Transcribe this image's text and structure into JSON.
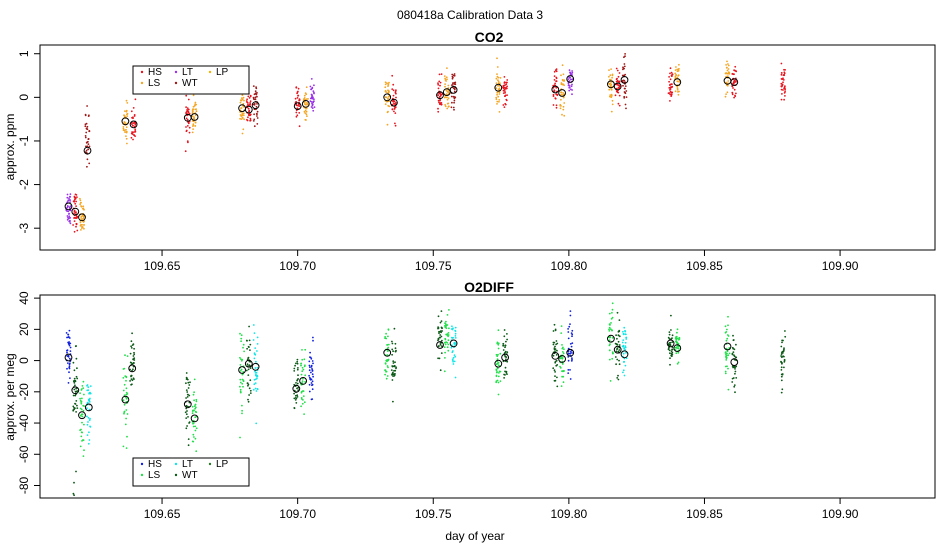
{
  "figure": {
    "title": "080418a   Calibration Data 3",
    "xlabel": "day of year"
  },
  "colors": {
    "HS": "#e8141e",
    "LS": "#f5a623",
    "LT": "#9a30e8",
    "WT": "#a01818",
    "LP": "#f2b300",
    "HS2": "#1020e0",
    "LS2": "#22e04a",
    "LT2": "#10e6e6",
    "WT2": "#0b5a17",
    "LP2": "#2a7a2a"
  },
  "chart_data": [
    {
      "type": "scatter",
      "title": "CO2",
      "ylabel": "approx. ppm",
      "xlim": [
        109.605,
        109.935
      ],
      "ylim": [
        -3.5,
        1.2
      ],
      "xticks": [
        109.65,
        109.7,
        109.75,
        109.8,
        109.85,
        109.9
      ],
      "xtick_labels": [
        "109.65",
        "109.70",
        "109.75",
        "109.80",
        "109.85",
        "109.90"
      ],
      "yticks": [
        -3,
        -2,
        -1,
        0,
        1
      ],
      "ytick_labels": [
        "-3",
        "-2",
        "-1",
        "0",
        "1"
      ],
      "legend": [
        "HS",
        "LS",
        "LT",
        "WT",
        "LP"
      ],
      "legend_position": "top-left",
      "clusters": [
        {
          "x": 109.6155,
          "y": -2.5,
          "s": "LT",
          "n": 40,
          "sd": 0.22
        },
        {
          "x": 109.618,
          "y": -2.6,
          "s": "HS",
          "n": 40,
          "sd": 0.2
        },
        {
          "x": 109.6205,
          "y": -2.75,
          "s": "LS",
          "n": 40,
          "sd": 0.2
        },
        {
          "x": 109.6225,
          "y": -0.85,
          "s": "WT",
          "n": 30,
          "sd": 0.3
        },
        {
          "x": 109.6225,
          "y": -1.2,
          "s": "WT",
          "n": 8,
          "sd": 0.25
        },
        {
          "x": 109.6365,
          "y": -0.55,
          "s": "LS",
          "n": 35,
          "sd": 0.22
        },
        {
          "x": 109.6395,
          "y": -0.62,
          "s": "HS",
          "n": 35,
          "sd": 0.2
        },
        {
          "x": 109.6595,
          "y": -0.47,
          "s": "HS",
          "n": 35,
          "sd": 0.22
        },
        {
          "x": 109.662,
          "y": -0.45,
          "s": "LS",
          "n": 35,
          "sd": 0.22
        },
        {
          "x": 109.6795,
          "y": -0.25,
          "s": "LS",
          "n": 35,
          "sd": 0.2
        },
        {
          "x": 109.682,
          "y": -0.3,
          "s": "HS",
          "n": 35,
          "sd": 0.22
        },
        {
          "x": 109.6845,
          "y": -0.18,
          "s": "WT",
          "n": 35,
          "sd": 0.2
        },
        {
          "x": 109.7,
          "y": -0.2,
          "s": "HS",
          "n": 35,
          "sd": 0.18
        },
        {
          "x": 109.703,
          "y": -0.15,
          "s": "LS",
          "n": 35,
          "sd": 0.2
        },
        {
          "x": 109.7055,
          "y": 0.0,
          "s": "LT",
          "n": 35,
          "sd": 0.2
        },
        {
          "x": 109.733,
          "y": -0.0,
          "s": "LS",
          "n": 35,
          "sd": 0.22
        },
        {
          "x": 109.7355,
          "y": -0.12,
          "s": "HS",
          "n": 35,
          "sd": 0.2
        },
        {
          "x": 109.7525,
          "y": 0.05,
          "s": "HS",
          "n": 35,
          "sd": 0.2
        },
        {
          "x": 109.755,
          "y": 0.12,
          "s": "LS",
          "n": 35,
          "sd": 0.22
        },
        {
          "x": 109.7575,
          "y": 0.17,
          "s": "WT",
          "n": 35,
          "sd": 0.22
        },
        {
          "x": 109.774,
          "y": 0.2,
          "s": "LS",
          "n": 35,
          "sd": 0.22
        },
        {
          "x": 109.7765,
          "y": 0.17,
          "s": "HS",
          "n": 35,
          "sd": 0.2
        },
        {
          "x": 109.795,
          "y": 0.18,
          "s": "HS",
          "n": 35,
          "sd": 0.2
        },
        {
          "x": 109.7975,
          "y": 0.1,
          "s": "LS",
          "n": 35,
          "sd": 0.25
        },
        {
          "x": 109.8005,
          "y": 0.42,
          "s": "LT",
          "n": 35,
          "sd": 0.2
        },
        {
          "x": 109.8155,
          "y": 0.3,
          "s": "LS",
          "n": 35,
          "sd": 0.22
        },
        {
          "x": 109.818,
          "y": 0.25,
          "s": "HS",
          "n": 35,
          "sd": 0.22
        },
        {
          "x": 109.8205,
          "y": 0.4,
          "s": "WT",
          "n": 35,
          "sd": 0.25
        },
        {
          "x": 109.8375,
          "y": 0.3,
          "s": "HS",
          "n": 35,
          "sd": 0.2
        },
        {
          "x": 109.84,
          "y": 0.35,
          "s": "LS",
          "n": 35,
          "sd": 0.22
        },
        {
          "x": 109.8585,
          "y": 0.38,
          "s": "LS",
          "n": 35,
          "sd": 0.2
        },
        {
          "x": 109.861,
          "y": 0.35,
          "s": "HS",
          "n": 35,
          "sd": 0.22
        },
        {
          "x": 109.879,
          "y": 0.35,
          "s": "HS",
          "n": 35,
          "sd": 0.2
        }
      ],
      "means": [
        {
          "x": 109.6155,
          "y": -2.5
        },
        {
          "x": 109.618,
          "y": -2.62
        },
        {
          "x": 109.6205,
          "y": -2.75
        },
        {
          "x": 109.6225,
          "y": -1.22
        },
        {
          "x": 109.6365,
          "y": -0.55
        },
        {
          "x": 109.6395,
          "y": -0.62
        },
        {
          "x": 109.6595,
          "y": -0.47
        },
        {
          "x": 109.662,
          "y": -0.45
        },
        {
          "x": 109.6795,
          "y": -0.25
        },
        {
          "x": 109.682,
          "y": -0.28
        },
        {
          "x": 109.6845,
          "y": -0.18
        },
        {
          "x": 109.7,
          "y": -0.2
        },
        {
          "x": 109.703,
          "y": -0.15
        },
        {
          "x": 109.733,
          "y": 0.0
        },
        {
          "x": 109.7355,
          "y": -0.12
        },
        {
          "x": 109.7525,
          "y": 0.05
        },
        {
          "x": 109.755,
          "y": 0.12
        },
        {
          "x": 109.7575,
          "y": 0.17
        },
        {
          "x": 109.774,
          "y": 0.22
        },
        {
          "x": 109.795,
          "y": 0.18
        },
        {
          "x": 109.7975,
          "y": 0.1
        },
        {
          "x": 109.8005,
          "y": 0.42
        },
        {
          "x": 109.8155,
          "y": 0.3
        },
        {
          "x": 109.818,
          "y": 0.25
        },
        {
          "x": 109.8205,
          "y": 0.4
        },
        {
          "x": 109.84,
          "y": 0.35
        },
        {
          "x": 109.8585,
          "y": 0.38
        },
        {
          "x": 109.861,
          "y": 0.35
        }
      ]
    },
    {
      "type": "scatter",
      "title": "O2DIFF",
      "ylabel": "approx. per meg",
      "xlim": [
        109.605,
        109.935
      ],
      "ylim": [
        -88,
        42
      ],
      "xticks": [
        109.65,
        109.7,
        109.75,
        109.8,
        109.85,
        109.9
      ],
      "xtick_labels": [
        "109.65",
        "109.70",
        "109.75",
        "109.80",
        "109.85",
        "109.90"
      ],
      "yticks": [
        -80,
        -60,
        -40,
        -20,
        0,
        20,
        40
      ],
      "ytick_labels": [
        "-80",
        "-60",
        "-40",
        "-20",
        "0",
        "20",
        "40"
      ],
      "legend": [
        "HS",
        "LS",
        "LT",
        "WT",
        "LP"
      ],
      "legend_position": "bottom-left",
      "clusters": [
        {
          "x": 109.6155,
          "y": 2,
          "s": "HS2",
          "n": 40,
          "sd": 9
        },
        {
          "x": 109.618,
          "y": -18,
          "s": "WT2",
          "n": 40,
          "sd": 12
        },
        {
          "x": 109.6205,
          "y": -35,
          "s": "LS2",
          "n": 35,
          "sd": 10
        },
        {
          "x": 109.623,
          "y": -30,
          "s": "LT2",
          "n": 35,
          "sd": 11
        },
        {
          "x": 109.618,
          "y": -75,
          "s": "WT2",
          "n": 4,
          "sd": 6
        },
        {
          "x": 109.6365,
          "y": -25,
          "s": "LS2",
          "n": 35,
          "sd": 13
        },
        {
          "x": 109.639,
          "y": -5,
          "s": "WT2",
          "n": 35,
          "sd": 10
        },
        {
          "x": 109.6595,
          "y": -28,
          "s": "WT2",
          "n": 35,
          "sd": 10
        },
        {
          "x": 109.662,
          "y": -35,
          "s": "LS2",
          "n": 35,
          "sd": 11
        },
        {
          "x": 109.6795,
          "y": -6,
          "s": "LS2",
          "n": 35,
          "sd": 13
        },
        {
          "x": 109.682,
          "y": -1,
          "s": "WT2",
          "n": 35,
          "sd": 12
        },
        {
          "x": 109.6845,
          "y": -5,
          "s": "LT2",
          "n": 35,
          "sd": 12
        },
        {
          "x": 109.6995,
          "y": -18,
          "s": "WT2",
          "n": 35,
          "sd": 10
        },
        {
          "x": 109.702,
          "y": -13,
          "s": "LS2",
          "n": 35,
          "sd": 10
        },
        {
          "x": 109.705,
          "y": -6,
          "s": "HS2",
          "n": 35,
          "sd": 8
        },
        {
          "x": 109.733,
          "y": 5,
          "s": "LS2",
          "n": 35,
          "sd": 9
        },
        {
          "x": 109.7355,
          "y": -4,
          "s": "WT2",
          "n": 35,
          "sd": 9
        },
        {
          "x": 109.7525,
          "y": 12,
          "s": "WT2",
          "n": 35,
          "sd": 9
        },
        {
          "x": 109.755,
          "y": 15,
          "s": "LS2",
          "n": 35,
          "sd": 9
        },
        {
          "x": 109.7575,
          "y": 10,
          "s": "LT2",
          "n": 35,
          "sd": 9
        },
        {
          "x": 109.774,
          "y": -3,
          "s": "LS2",
          "n": 35,
          "sd": 9
        },
        {
          "x": 109.7765,
          "y": 2,
          "s": "WT2",
          "n": 35,
          "sd": 9
        },
        {
          "x": 109.795,
          "y": 3,
          "s": "WT2",
          "n": 35,
          "sd": 11
        },
        {
          "x": 109.7975,
          "y": 1,
          "s": "LS2",
          "n": 35,
          "sd": 10
        },
        {
          "x": 109.8005,
          "y": 5,
          "s": "HS2",
          "n": 35,
          "sd": 11
        },
        {
          "x": 109.8155,
          "y": 14,
          "s": "LS2",
          "n": 35,
          "sd": 9
        },
        {
          "x": 109.818,
          "y": 7,
          "s": "WT2",
          "n": 35,
          "sd": 9
        },
        {
          "x": 109.8205,
          "y": 4,
          "s": "LT2",
          "n": 35,
          "sd": 9
        },
        {
          "x": 109.8375,
          "y": 10,
          "s": "WT2",
          "n": 35,
          "sd": 6
        },
        {
          "x": 109.84,
          "y": 9,
          "s": "LS2",
          "n": 35,
          "sd": 6
        },
        {
          "x": 109.8585,
          "y": 8,
          "s": "LS2",
          "n": 35,
          "sd": 8
        },
        {
          "x": 109.861,
          "y": -1,
          "s": "WT2",
          "n": 35,
          "sd": 8
        },
        {
          "x": 109.879,
          "y": 3,
          "s": "WT2",
          "n": 35,
          "sd": 9
        }
      ],
      "means": [
        {
          "x": 109.6155,
          "y": 2
        },
        {
          "x": 109.618,
          "y": -19
        },
        {
          "x": 109.6205,
          "y": -35
        },
        {
          "x": 109.623,
          "y": -30
        },
        {
          "x": 109.6365,
          "y": -25
        },
        {
          "x": 109.639,
          "y": -5
        },
        {
          "x": 109.6595,
          "y": -28
        },
        {
          "x": 109.662,
          "y": -37
        },
        {
          "x": 109.6795,
          "y": -6
        },
        {
          "x": 109.682,
          "y": -2
        },
        {
          "x": 109.6845,
          "y": -4
        },
        {
          "x": 109.6995,
          "y": -18
        },
        {
          "x": 109.702,
          "y": -13
        },
        {
          "x": 109.733,
          "y": 5
        },
        {
          "x": 109.7525,
          "y": 10
        },
        {
          "x": 109.7575,
          "y": 11
        },
        {
          "x": 109.774,
          "y": -2
        },
        {
          "x": 109.7765,
          "y": 2
        },
        {
          "x": 109.795,
          "y": 3
        },
        {
          "x": 109.7975,
          "y": 1
        },
        {
          "x": 109.8005,
          "y": 5
        },
        {
          "x": 109.8155,
          "y": 14
        },
        {
          "x": 109.818,
          "y": 7
        },
        {
          "x": 109.8205,
          "y": 4
        },
        {
          "x": 109.8375,
          "y": 11
        },
        {
          "x": 109.84,
          "y": 8
        },
        {
          "x": 109.8585,
          "y": 9
        },
        {
          "x": 109.861,
          "y": -1
        }
      ]
    }
  ]
}
